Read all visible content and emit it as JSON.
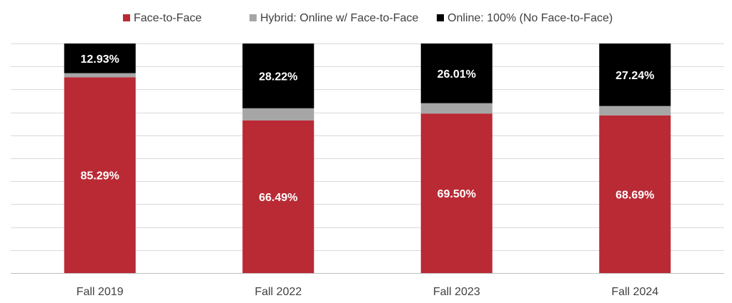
{
  "legend": {
    "placement": "top-center",
    "items": [
      {
        "label": "Face-to-Face",
        "color": "#b92a35"
      },
      {
        "label": "Hybrid: Online w/ Face-to-Face",
        "color": "#a6a6a6"
      },
      {
        "label": "Online: 100% (No Face-to-Face)",
        "color": "#000000"
      }
    ]
  },
  "chart_data": {
    "type": "bar",
    "stacked": true,
    "categories": [
      "Fall 2019",
      "Fall 2022",
      "Fall 2023",
      "Fall 2024"
    ],
    "series": [
      {
        "name": "Face-to-Face",
        "color": "#b92a35",
        "values": [
          85.29,
          66.49,
          69.5,
          68.69
        ],
        "labels": [
          "85.29%",
          "66.49%",
          "69.50%",
          "68.69%"
        ]
      },
      {
        "name": "Hybrid: Online w/ Face-to-Face",
        "color": "#a6a6a6",
        "values": [
          1.78,
          5.29,
          4.49,
          4.07
        ],
        "labels": [
          "",
          "",
          "",
          ""
        ]
      },
      {
        "name": "Online: 100% (No Face-to-Face)",
        "color": "#000000",
        "values": [
          12.93,
          28.22,
          26.01,
          27.24
        ],
        "labels": [
          "12.93%",
          "28.22%",
          "26.01%",
          "27.24%"
        ]
      }
    ],
    "ylim": [
      0,
      100
    ],
    "grid": true,
    "xlabel": "",
    "ylabel": "",
    "title": ""
  }
}
